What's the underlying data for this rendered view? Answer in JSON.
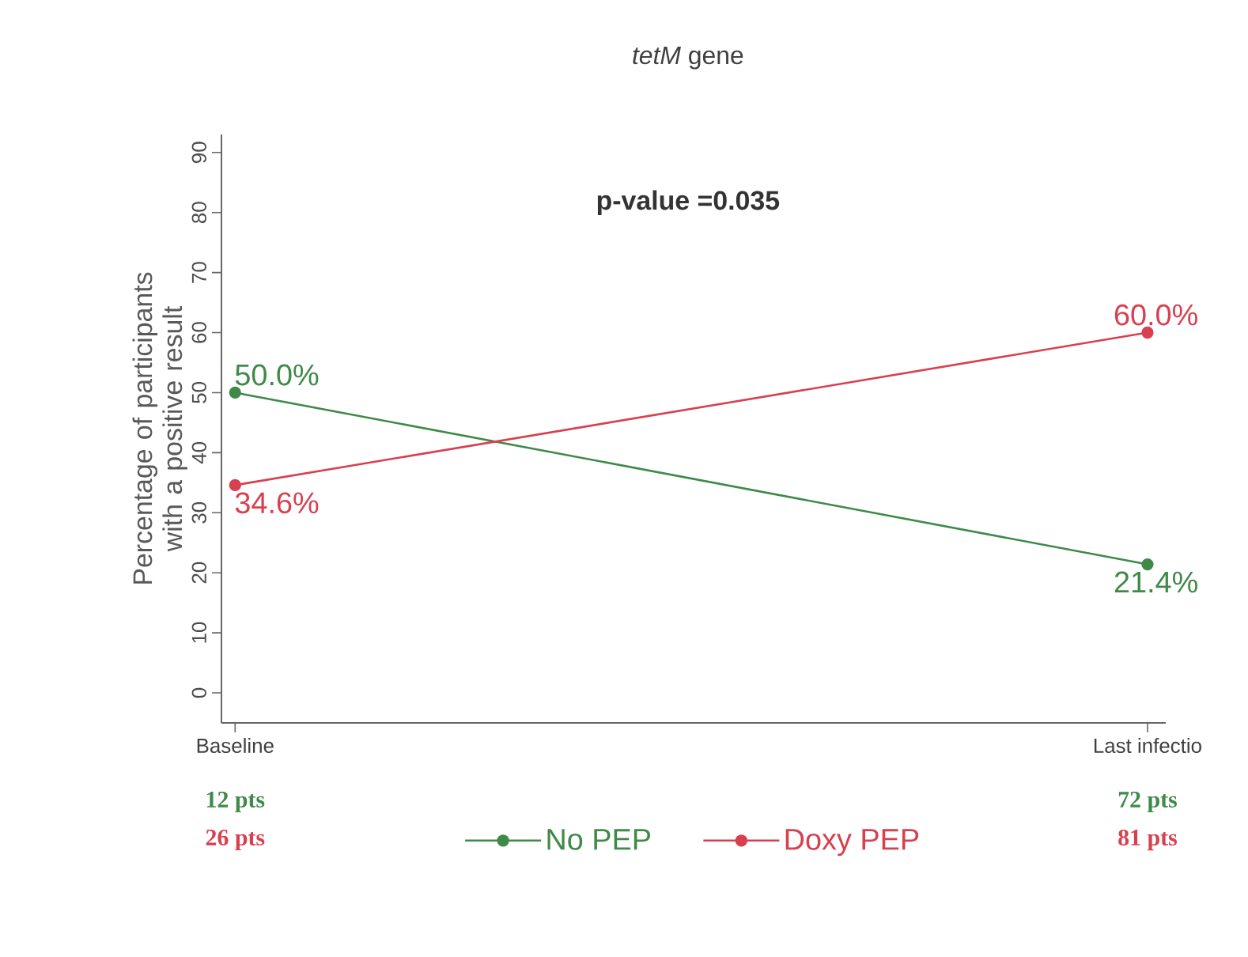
{
  "chart_data": {
    "type": "line",
    "title": "*tetM* gene",
    "subtitle": "p-value =0.035",
    "ylabel": "Percentage of participants with a positive result",
    "categories": [
      "Baseline",
      "Last infectio"
    ],
    "series": [
      {
        "name": "No PEP",
        "color": "#3f8a48",
        "values": [
          50.0,
          21.4
        ],
        "value_labels": [
          "50.0%",
          "21.4%"
        ]
      },
      {
        "name": "Doxy PEP",
        "color": "#d8404f",
        "values": [
          34.6,
          60.0
        ],
        "value_labels": [
          "34.6%",
          "60.0%"
        ]
      }
    ],
    "ylim": [
      -5,
      93
    ],
    "yticks": [
      0,
      10,
      20,
      30,
      40,
      50,
      60,
      70,
      80,
      90
    ],
    "marker": "circle",
    "line_style": "solid",
    "legend": "bottom",
    "annotations": [
      "12 pts",
      "26 pts",
      "72 pts",
      "81 pts"
    ]
  }
}
